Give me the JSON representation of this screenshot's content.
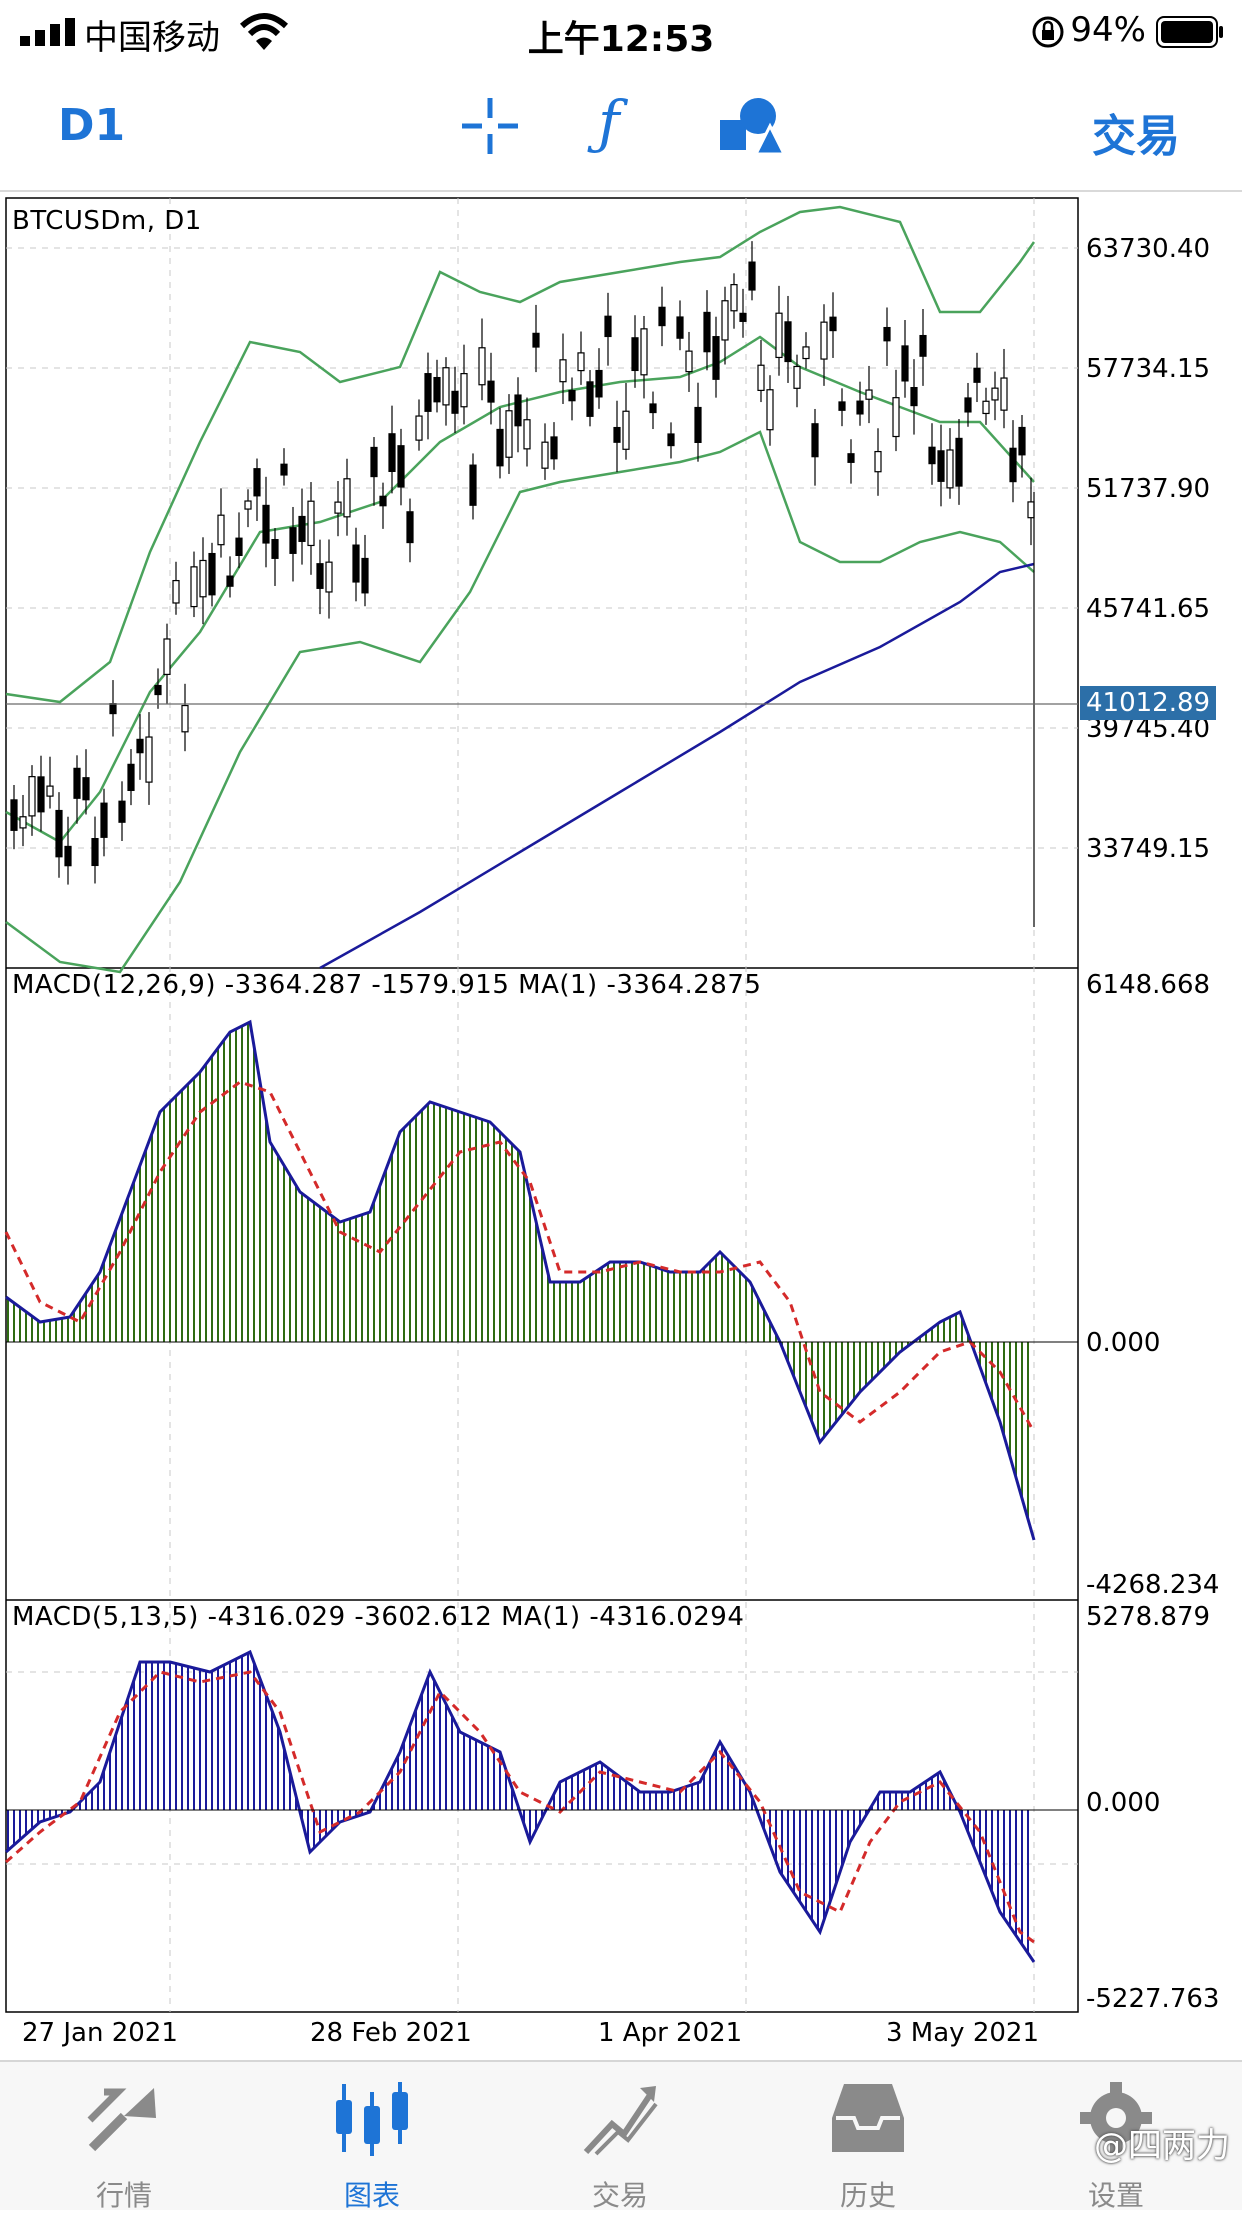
{
  "status_bar": {
    "carrier": "中国移动",
    "time": "上午12:53",
    "battery": "94%"
  },
  "toolbar": {
    "period": "D1",
    "trade_label": "交易",
    "icons": [
      "crosshair-icon",
      "function-icon",
      "objects-icon"
    ]
  },
  "chart": {
    "symbol_title": "BTCUSDm, D1",
    "current_price": "41012.89",
    "price_scale": [
      "63730.40",
      "57734.15",
      "51737.90",
      "45741.65",
      "39745.40",
      "33749.15"
    ],
    "date_labels": [
      "27 Jan 2021",
      "28 Feb 2021",
      "1 Apr 2021",
      "3 May 2021"
    ],
    "colors": {
      "bollinger": "#4aa35c",
      "ma": "#1a1a9a",
      "macd_line": "#1a1a9a",
      "signal_line": "#d42a2a",
      "macd1_hist": "#2e6b12",
      "macd2_hist": "#1a1a9a"
    }
  },
  "macd1": {
    "legend": "MACD(12,26,9) -3364.287 -1579.915 MA(1) -3364.2875",
    "scale": [
      "6148.668",
      "0.000",
      "-4268.234"
    ]
  },
  "macd2": {
    "legend": "MACD(5,13,5) -4316.029 -3602.612 MA(1) -4316.0294",
    "scale": [
      "5278.879",
      "0.000",
      "-5227.763"
    ]
  },
  "tabbar": {
    "items": [
      {
        "label": "行情",
        "icon": "quotes-icon"
      },
      {
        "label": "图表",
        "icon": "chart-icon"
      },
      {
        "label": "交易",
        "icon": "trade-icon"
      },
      {
        "label": "历史",
        "icon": "history-icon"
      },
      {
        "label": "设置",
        "icon": "settings-icon"
      }
    ],
    "active_index": 1
  },
  "watermark": "@四两力"
}
